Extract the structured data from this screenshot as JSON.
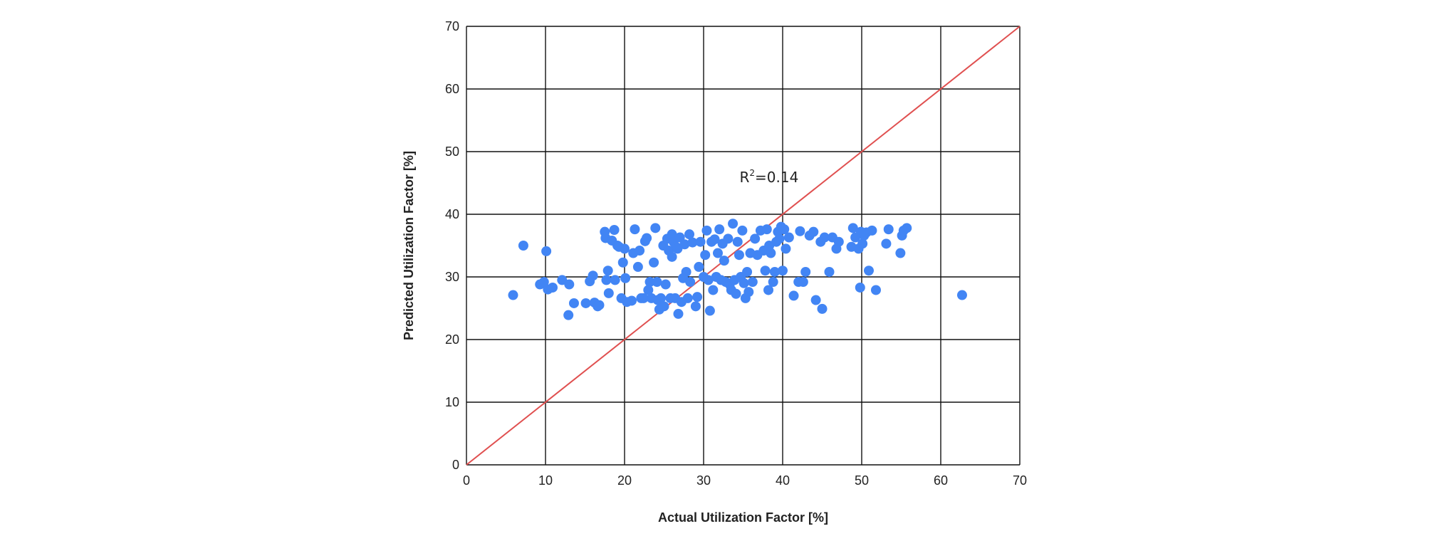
{
  "chart_data": {
    "type": "scatter",
    "xlabel": "Actual Utilization Factor [%]",
    "ylabel": "Predicted Utilization Factor [%]",
    "xlim": [
      0,
      70
    ],
    "ylim": [
      0,
      70
    ],
    "xticks": [
      0,
      10,
      20,
      30,
      40,
      50,
      60,
      70
    ],
    "yticks": [
      0,
      10,
      20,
      30,
      40,
      50,
      60,
      70
    ],
    "grid": true,
    "reference_line": {
      "from": [
        0,
        0
      ],
      "to": [
        70,
        70
      ],
      "color": "#e05050"
    },
    "annotation": {
      "base": "R",
      "sup": "2",
      "rest": "=0.14",
      "x": 35,
      "y": 46
    },
    "marker_color": "#4285f4",
    "series": [
      {
        "points": [
          [
            5.9,
            27.1
          ],
          [
            7.2,
            35.0
          ],
          [
            9.3,
            28.8
          ],
          [
            9.8,
            29.2
          ],
          [
            10.1,
            34.1
          ],
          [
            10.3,
            28.0
          ],
          [
            10.9,
            28.3
          ],
          [
            12.1,
            29.5
          ],
          [
            12.9,
            23.9
          ],
          [
            13.0,
            28.8
          ],
          [
            13.6,
            25.8
          ],
          [
            15.1,
            25.8
          ],
          [
            15.6,
            29.3
          ],
          [
            16.0,
            30.2
          ],
          [
            16.2,
            25.9
          ],
          [
            16.6,
            25.3
          ],
          [
            16.8,
            25.5
          ],
          [
            17.5,
            37.2
          ],
          [
            17.6,
            36.2
          ],
          [
            17.7,
            29.5
          ],
          [
            17.9,
            31.0
          ],
          [
            18.0,
            27.4
          ],
          [
            18.4,
            35.8
          ],
          [
            18.7,
            37.5
          ],
          [
            18.8,
            29.5
          ],
          [
            19.1,
            35.0
          ],
          [
            19.3,
            34.8
          ],
          [
            19.6,
            26.6
          ],
          [
            19.8,
            32.3
          ],
          [
            20.0,
            34.5
          ],
          [
            20.1,
            29.8
          ],
          [
            20.3,
            26.0
          ],
          [
            20.9,
            26.2
          ],
          [
            21.1,
            33.8
          ],
          [
            21.3,
            37.6
          ],
          [
            21.7,
            31.6
          ],
          [
            21.9,
            34.2
          ],
          [
            22.1,
            26.6
          ],
          [
            22.4,
            26.6
          ],
          [
            22.6,
            35.7
          ],
          [
            22.8,
            36.2
          ],
          [
            23.0,
            27.9
          ],
          [
            23.2,
            29.2
          ],
          [
            23.4,
            26.6
          ],
          [
            23.7,
            32.3
          ],
          [
            23.9,
            37.8
          ],
          [
            24.1,
            29.2
          ],
          [
            24.2,
            26.3
          ],
          [
            24.4,
            24.8
          ],
          [
            24.6,
            26.6
          ],
          [
            24.9,
            35.0
          ],
          [
            25.0,
            25.3
          ],
          [
            25.2,
            28.8
          ],
          [
            25.4,
            36.1
          ],
          [
            25.6,
            34.2
          ],
          [
            25.8,
            26.6
          ],
          [
            26.0,
            33.2
          ],
          [
            26.0,
            36.8
          ],
          [
            26.2,
            35.6
          ],
          [
            26.4,
            26.6
          ],
          [
            26.5,
            34.8
          ],
          [
            26.7,
            34.5
          ],
          [
            26.8,
            24.1
          ],
          [
            27.0,
            36.3
          ],
          [
            27.2,
            26.0
          ],
          [
            27.4,
            29.8
          ],
          [
            27.6,
            35.2
          ],
          [
            27.8,
            30.8
          ],
          [
            28.0,
            26.6
          ],
          [
            28.2,
            36.8
          ],
          [
            28.3,
            29.2
          ],
          [
            28.6,
            35.5
          ],
          [
            29.0,
            25.3
          ],
          [
            29.2,
            26.8
          ],
          [
            29.4,
            31.6
          ],
          [
            29.6,
            35.6
          ],
          [
            30.0,
            30.0
          ],
          [
            30.2,
            33.5
          ],
          [
            30.4,
            37.4
          ],
          [
            30.6,
            29.5
          ],
          [
            30.8,
            24.6
          ],
          [
            31.0,
            35.6
          ],
          [
            31.2,
            27.9
          ],
          [
            31.4,
            36.0
          ],
          [
            31.6,
            30.0
          ],
          [
            31.8,
            33.8
          ],
          [
            32.0,
            37.6
          ],
          [
            32.2,
            29.5
          ],
          [
            32.4,
            35.3
          ],
          [
            32.6,
            32.6
          ],
          [
            32.8,
            29.2
          ],
          [
            33.1,
            36.1
          ],
          [
            33.3,
            28.8
          ],
          [
            33.5,
            27.9
          ],
          [
            33.7,
            38.5
          ],
          [
            33.9,
            29.5
          ],
          [
            34.1,
            27.3
          ],
          [
            34.3,
            35.6
          ],
          [
            34.5,
            33.5
          ],
          [
            34.7,
            30.0
          ],
          [
            34.9,
            37.4
          ],
          [
            35.1,
            29.0
          ],
          [
            35.3,
            26.6
          ],
          [
            35.5,
            30.8
          ],
          [
            35.7,
            27.6
          ],
          [
            35.9,
            33.8
          ],
          [
            36.2,
            29.2
          ],
          [
            36.5,
            36.1
          ],
          [
            36.8,
            33.5
          ],
          [
            37.2,
            37.4
          ],
          [
            37.6,
            34.2
          ],
          [
            37.8,
            31.0
          ],
          [
            38.0,
            37.6
          ],
          [
            38.2,
            27.9
          ],
          [
            38.3,
            35.0
          ],
          [
            38.5,
            33.8
          ],
          [
            38.8,
            29.2
          ],
          [
            39.0,
            30.8
          ],
          [
            39.2,
            35.6
          ],
          [
            39.4,
            37.2
          ],
          [
            39.6,
            36.1
          ],
          [
            39.8,
            38.0
          ],
          [
            40.0,
            31.0
          ],
          [
            40.2,
            37.6
          ],
          [
            40.4,
            34.5
          ],
          [
            40.8,
            36.3
          ],
          [
            41.4,
            27.0
          ],
          [
            42.0,
            29.2
          ],
          [
            42.2,
            37.3
          ],
          [
            42.6,
            29.2
          ],
          [
            42.9,
            30.8
          ],
          [
            43.4,
            36.6
          ],
          [
            43.9,
            37.2
          ],
          [
            44.2,
            26.3
          ],
          [
            44.8,
            35.6
          ],
          [
            45.0,
            24.9
          ],
          [
            45.3,
            36.3
          ],
          [
            45.9,
            30.8
          ],
          [
            46.3,
            36.3
          ],
          [
            46.8,
            34.5
          ],
          [
            47.1,
            35.6
          ],
          [
            48.7,
            34.8
          ],
          [
            48.9,
            37.8
          ],
          [
            49.2,
            36.3
          ],
          [
            49.6,
            34.5
          ],
          [
            49.8,
            28.3
          ],
          [
            49.9,
            37.2
          ],
          [
            50.1,
            35.3
          ],
          [
            50.3,
            36.6
          ],
          [
            50.6,
            37.1
          ],
          [
            50.9,
            31.0
          ],
          [
            51.3,
            37.4
          ],
          [
            51.8,
            27.9
          ],
          [
            53.1,
            35.3
          ],
          [
            53.4,
            37.6
          ],
          [
            54.9,
            33.8
          ],
          [
            55.1,
            36.6
          ],
          [
            55.3,
            37.4
          ],
          [
            55.7,
            37.8
          ],
          [
            62.7,
            27.1
          ]
        ]
      }
    ]
  }
}
